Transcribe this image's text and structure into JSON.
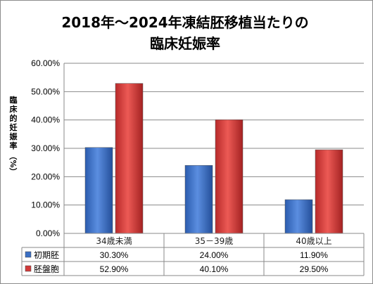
{
  "chart_data": {
    "type": "bar",
    "title_lines": [
      "2018年～2024年凍結胚移植当たりの",
      "臨床妊娠率"
    ],
    "ylabel": "臨床的妊娠率（%）",
    "ylabel_chars": [
      "臨",
      "床",
      "的",
      "妊",
      "娠",
      "率",
      "（%）"
    ],
    "ylim": [
      0,
      60
    ],
    "yticks": [
      "0.00%",
      "10.00%",
      "20.00%",
      "30.00%",
      "40.00%",
      "50.00%",
      "60.00%"
    ],
    "categories": [
      "34歳未満",
      "35－39歳",
      "40歳以上"
    ],
    "grid": true,
    "series": [
      {
        "name": "初期胚",
        "color": "#3a6fc4",
        "values": [
          30.3,
          24.0,
          11.9
        ],
        "labels": [
          "30.30%",
          "24.00%",
          "11.90%"
        ]
      },
      {
        "name": "胚盤胞",
        "color": "#d23a3a",
        "values": [
          52.9,
          40.1,
          29.5
        ],
        "labels": [
          "52.90%",
          "40.10%",
          "29.50%"
        ]
      }
    ],
    "data_table": true
  }
}
